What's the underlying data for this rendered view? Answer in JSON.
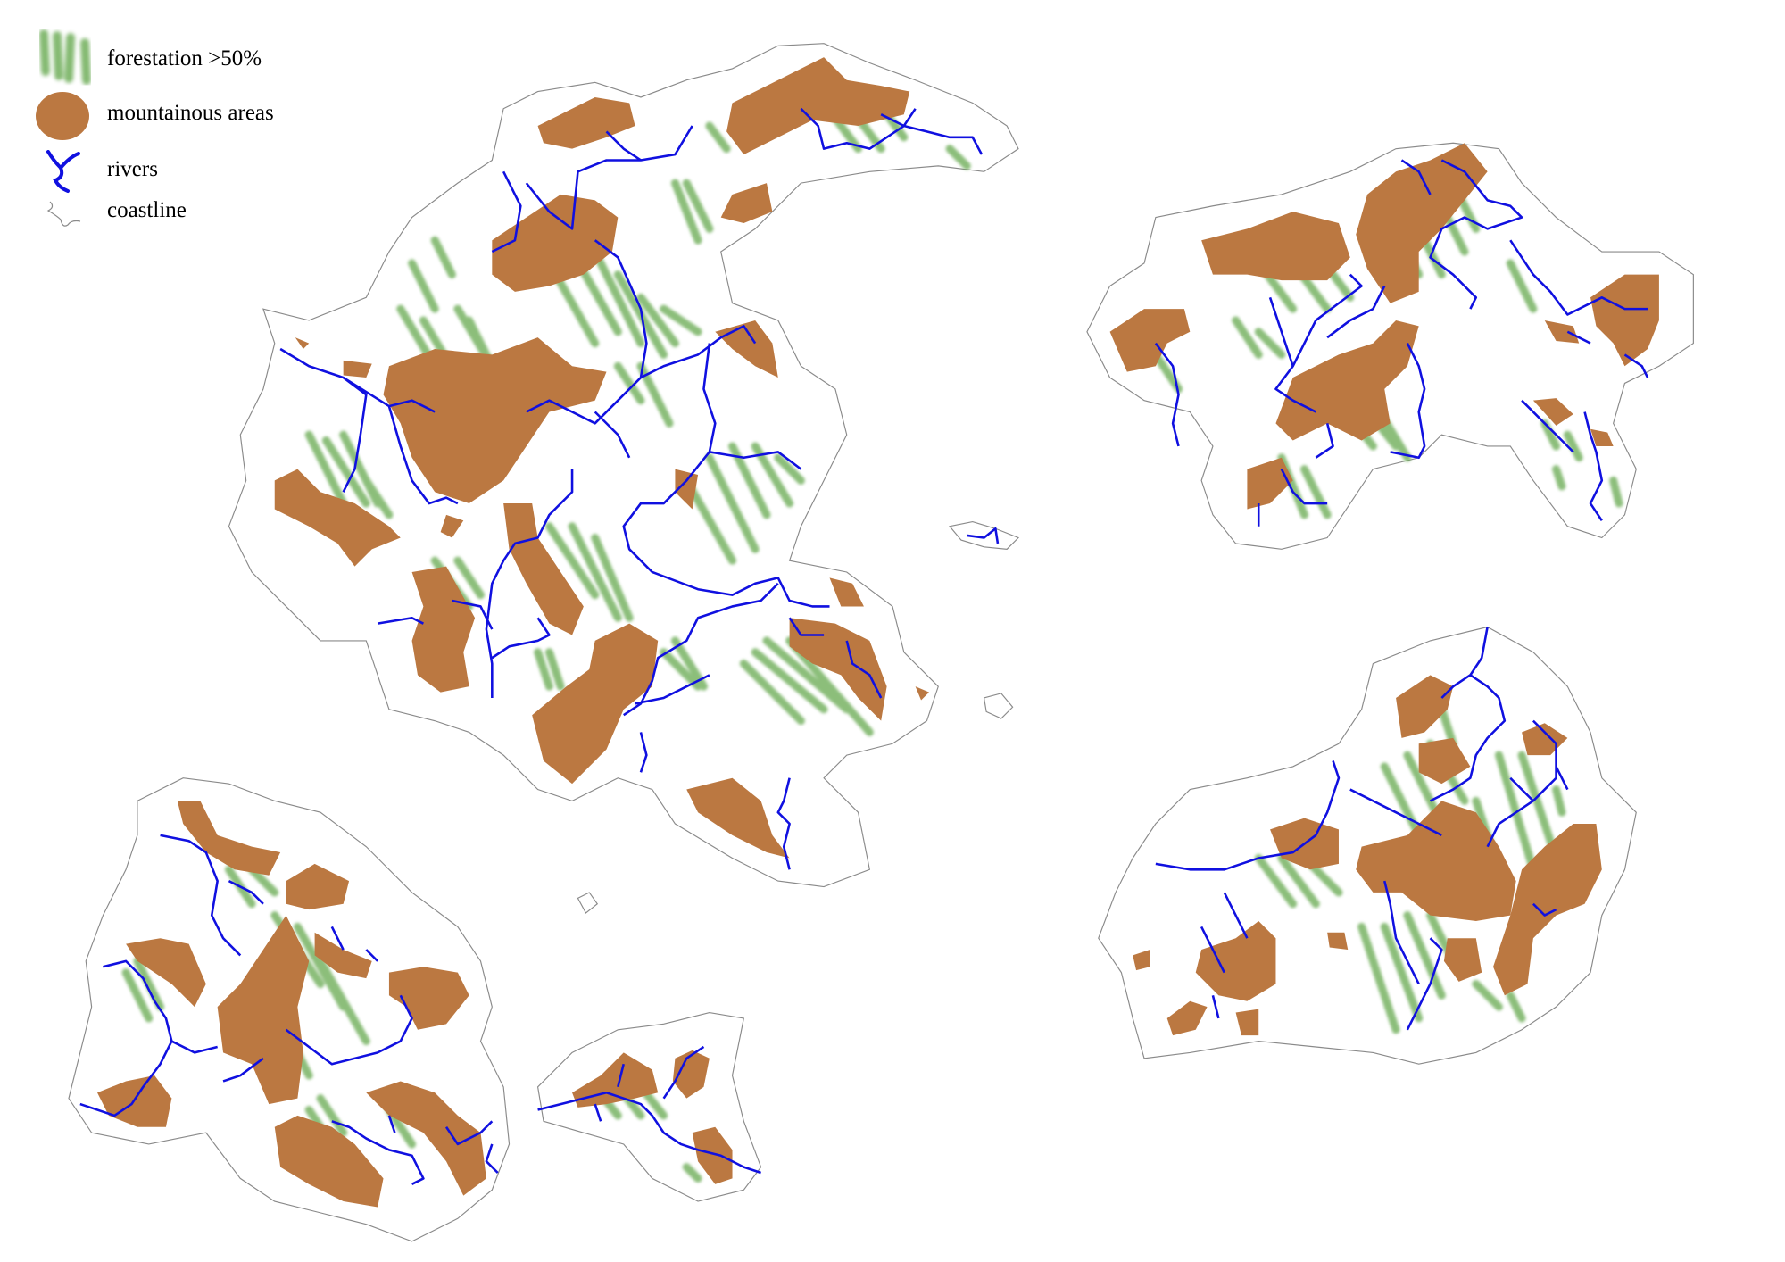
{
  "legend": {
    "items": [
      {
        "label": "forestation >50%",
        "icon": "forest-icon"
      },
      {
        "label": "mountainous areas",
        "icon": "mountain-icon"
      },
      {
        "label": "rivers",
        "icon": "river-icon"
      },
      {
        "label": "coastline",
        "icon": "coastline-icon"
      }
    ]
  },
  "colors": {
    "forest": "#6fae5a",
    "mountain": "#bb7841",
    "river": "#1010e0",
    "coastline": "#8a8a8a",
    "background": "#ffffff"
  }
}
